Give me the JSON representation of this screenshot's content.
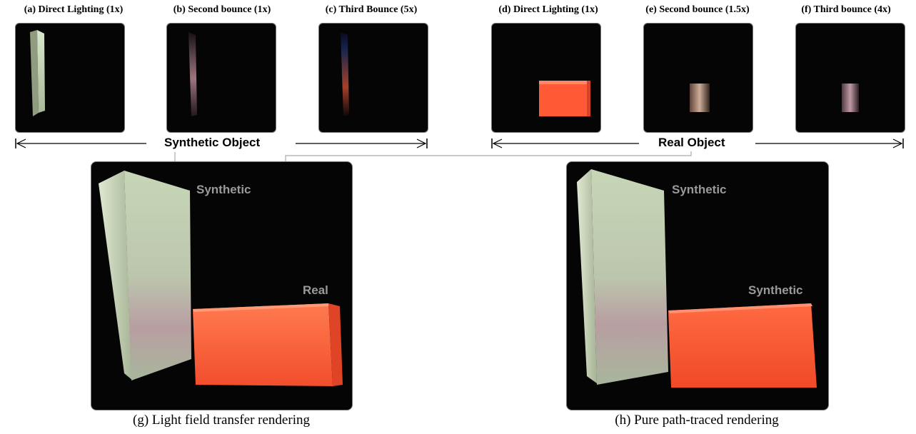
{
  "top_panels": [
    {
      "caption": "(a) Direct Lighting (1x)"
    },
    {
      "caption": "(b) Second bounce (1x)"
    },
    {
      "caption": "(c) Third Bounce (5x)"
    },
    {
      "caption": "(d) Direct Lighting (1x)"
    },
    {
      "caption": "(e) Second bounce (1.5x)"
    },
    {
      "caption": "(f) Third bounce (4x)"
    }
  ],
  "groups": {
    "synthetic": "Synthetic Object",
    "real": "Real Object"
  },
  "large_panels": {
    "left": {
      "label_upper": "Synthetic",
      "label_lower": "Real",
      "caption": "(g) Light field transfer rendering"
    },
    "right": {
      "label_upper": "Synthetic",
      "label_lower": "Synthetic",
      "caption": "(h) Pure path-traced rendering"
    }
  },
  "colors": {
    "synthetic_block": "#c9d8bd",
    "real_block": "#ff5a35",
    "panel_bg": "#050505",
    "label_gray": "#9a9a9a"
  }
}
